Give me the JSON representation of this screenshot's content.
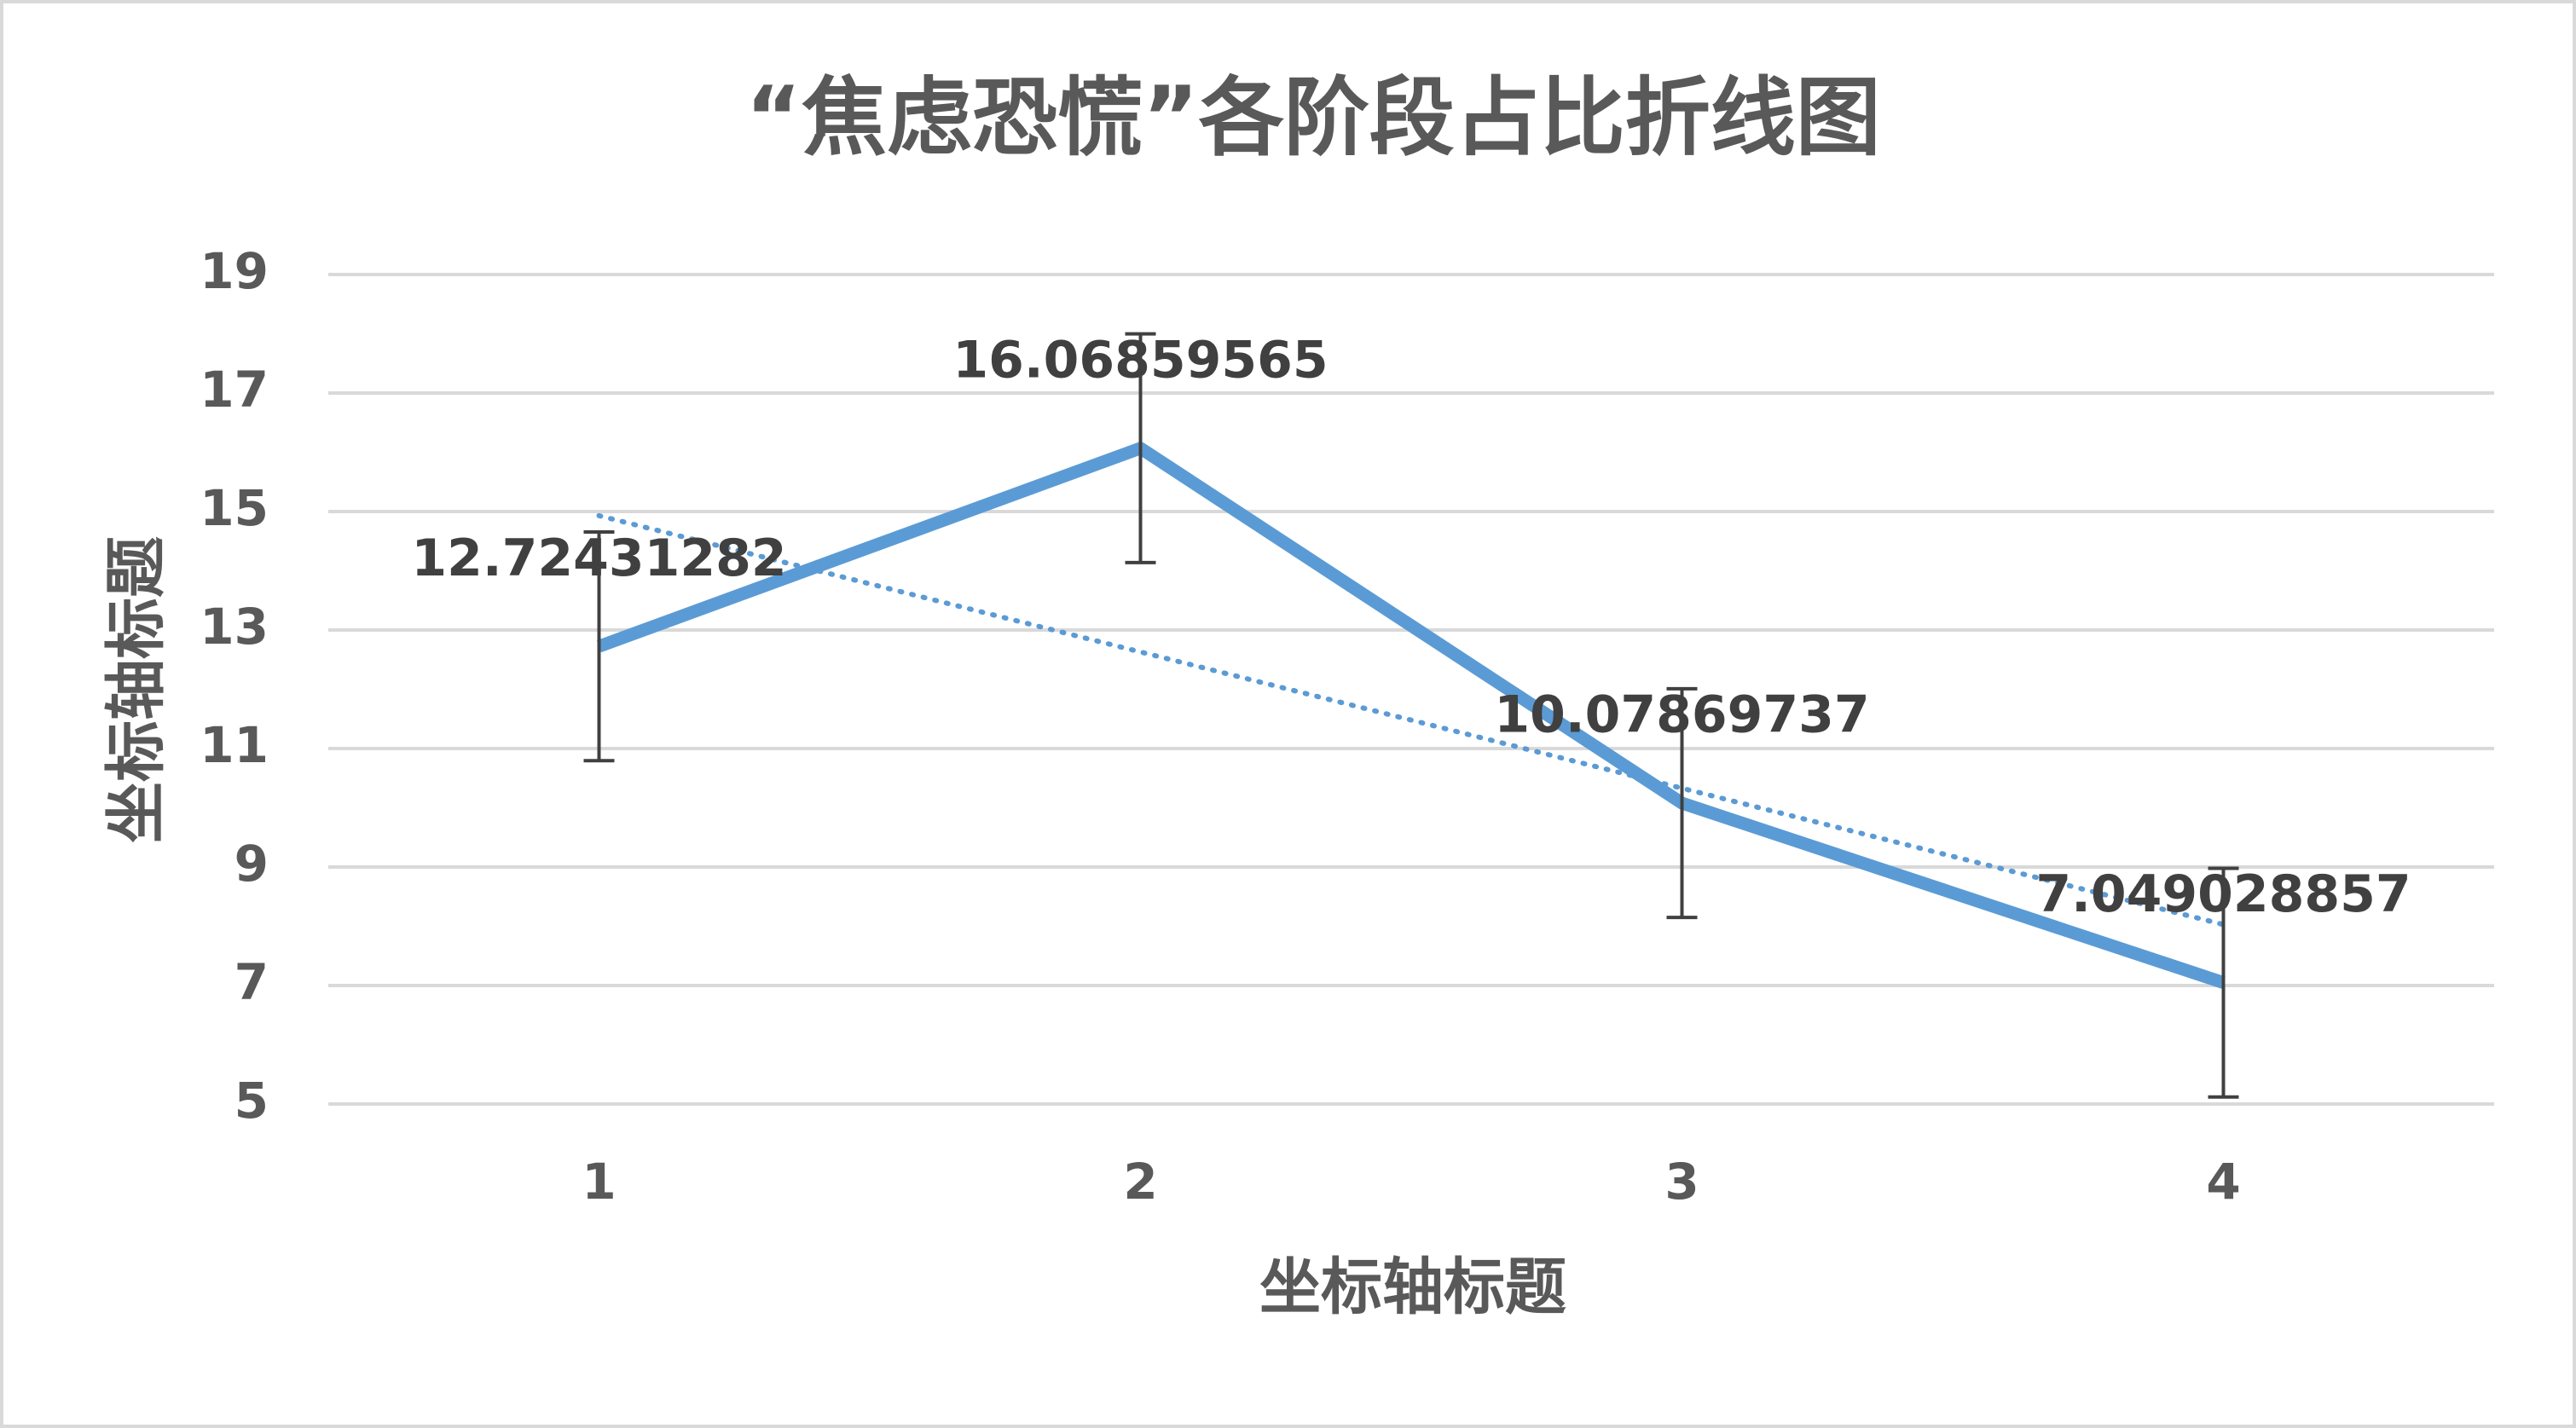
{
  "chart_data": {
    "type": "line",
    "title": "“焦虑恐慌”各阶段占比折线图",
    "x_label": "坐标轴标题",
    "y_label": "坐标轴标题",
    "categories": [
      "1",
      "2",
      "3",
      "4"
    ],
    "series": [
      {
        "color": "#5b9bd5",
        "values": [
          12.72431282,
          16.06859565,
          10.07869737,
          7.049028857
        ],
        "errors": [
          1.93,
          1.93,
          1.93,
          1.93
        ]
      }
    ],
    "trendline": {
      "color": "#5b9bd5",
      "values": [
        14.93,
        12.63,
        10.33,
        8.03
      ]
    },
    "error_color": "#404040",
    "ylim": [
      5,
      19
    ],
    "yticks": [
      5,
      7,
      9,
      11,
      13,
      15,
      17,
      19
    ],
    "grid": true
  }
}
